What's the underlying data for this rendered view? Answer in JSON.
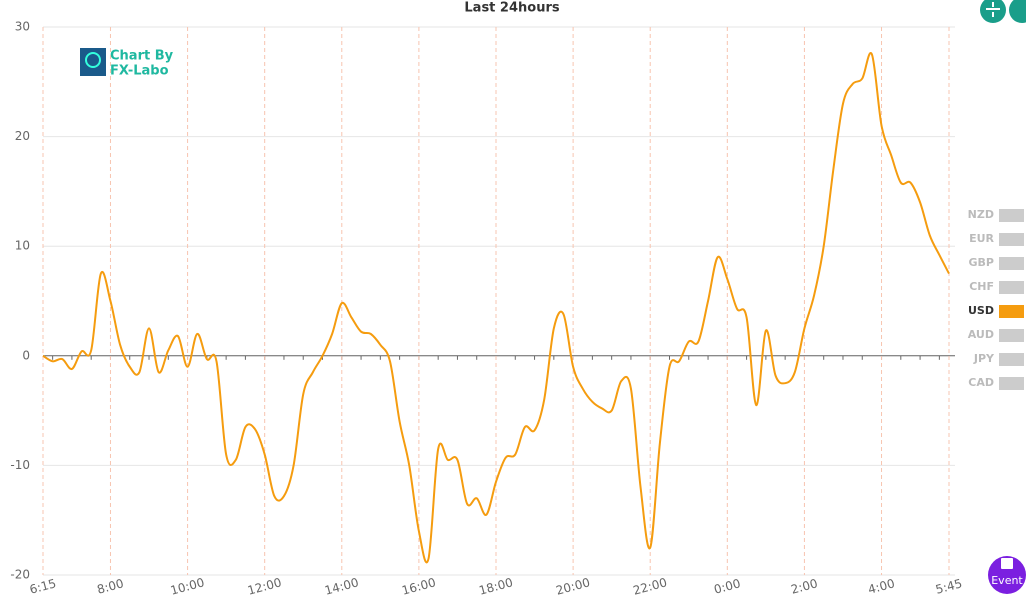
{
  "logo": {
    "line1": "Chart By",
    "line2": "FX-Labo"
  },
  "event_button": "Event",
  "chart_data": {
    "type": "line",
    "title": "Last 24hours",
    "categories": [
      "6:15",
      null,
      null,
      null,
      null,
      null,
      null,
      "8:00",
      null,
      null,
      null,
      null,
      null,
      null,
      null,
      "10:00",
      null,
      null,
      null,
      null,
      null,
      null,
      null,
      "12:00",
      null,
      null,
      null,
      null,
      null,
      null,
      null,
      "14:00",
      null,
      null,
      null,
      null,
      null,
      null,
      null,
      "16:00",
      null,
      null,
      null,
      null,
      null,
      null,
      null,
      "18:00",
      null,
      null,
      null,
      null,
      null,
      null,
      null,
      "20:00",
      null,
      null,
      null,
      null,
      null,
      null,
      null,
      "22:00",
      null,
      null,
      null,
      null,
      null,
      null,
      null,
      "0:00",
      null,
      null,
      null,
      null,
      null,
      null,
      null,
      "2:00",
      null,
      null,
      null,
      null,
      null,
      null,
      null,
      "4:00",
      null,
      null,
      null,
      null,
      null,
      null,
      "5:45"
    ],
    "series": [
      {
        "name": "NZD",
        "color": "#cccccc",
        "visible": false
      },
      {
        "name": "EUR",
        "color": "#cccccc",
        "visible": false
      },
      {
        "name": "GBP",
        "color": "#cccccc",
        "visible": false
      },
      {
        "name": "CHF",
        "color": "#cccccc",
        "visible": false
      },
      {
        "name": "USD",
        "color": "#f59c0f",
        "visible": true,
        "values": [
          0,
          -0.5,
          -0.3,
          -1.2,
          0.4,
          0.5,
          7.5,
          5,
          1,
          -1,
          -1.5,
          2.5,
          -1.5,
          0.5,
          1.8,
          -1,
          2,
          -0.3,
          -0.5,
          -9,
          -9.5,
          -6.5,
          -6.7,
          -9,
          -12.8,
          -12.8,
          -10,
          -3.5,
          -1.5,
          0,
          2,
          4.8,
          3.5,
          2.2,
          2,
          1,
          -0.5,
          -6,
          -10,
          -16,
          -18.5,
          -8.5,
          -9.5,
          -9.5,
          -13.5,
          -13,
          -14.5,
          -11.5,
          -9.3,
          -9,
          -6.5,
          -6.8,
          -4,
          2.5,
          3.8,
          -1,
          -3,
          -4.2,
          -4.8,
          -5,
          -2.3,
          -3,
          -12,
          -17.5,
          -8,
          -1,
          -0.5,
          1.3,
          1.3,
          5,
          9,
          7,
          4.3,
          3.5,
          -4.5,
          2.3,
          -1.8,
          -2.5,
          -1.5,
          2.5,
          5.5,
          10,
          17,
          23,
          24.8,
          25.3,
          27.5,
          21,
          18.3,
          15.8,
          15.8,
          14,
          11,
          9.2,
          7.5
        ]
      },
      {
        "name": "AUD",
        "color": "#cccccc",
        "visible": false
      },
      {
        "name": "JPY",
        "color": "#cccccc",
        "visible": false
      },
      {
        "name": "CAD",
        "color": "#cccccc",
        "visible": false
      }
    ],
    "ylim": [
      -20,
      30
    ],
    "yticks": [
      -20,
      -10,
      0,
      10,
      20,
      30
    ],
    "grid": true
  }
}
